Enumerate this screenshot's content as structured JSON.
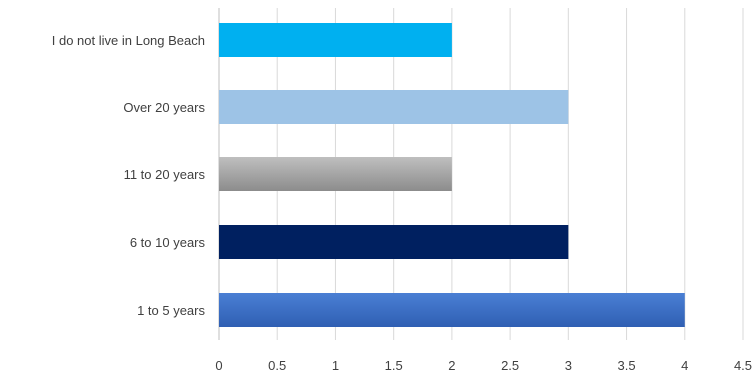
{
  "chart_data": {
    "type": "bar",
    "orientation": "horizontal",
    "categories": [
      "I do not live in Long Beach",
      "Over 20 years",
      "11 to 20 years",
      "6 to 10 years",
      "1 to 5 years"
    ],
    "values": [
      2,
      3,
      2,
      3,
      4
    ],
    "colors": [
      "#00b0f0",
      "#9dc3e6",
      "#a6a6a6",
      "#002060",
      "#4472c4"
    ],
    "xlim": [
      0,
      4.5
    ],
    "xticks": [
      "0",
      "0.5",
      "1",
      "1.5",
      "2",
      "2.5",
      "3",
      "3.5",
      "4",
      "4.5"
    ],
    "grid": true,
    "legend": "none",
    "title": "",
    "xlabel": "",
    "ylabel": ""
  }
}
